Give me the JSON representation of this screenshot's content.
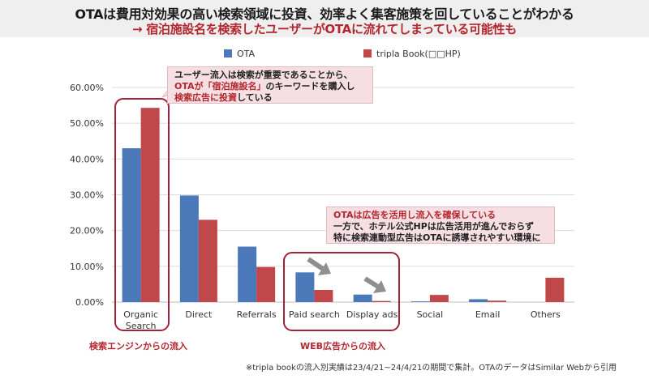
{
  "header": {
    "title": "OTAは費用対効果の高い検索領域に投資、効率よく集客施策を回していることがわかる",
    "subtitle": "→ 宿泊施設名を検索したユーザーがOTAに流れてしまっている可能性も"
  },
  "callouts": {
    "top": {
      "line1": "ユーザー流入は検索が重要であることから、",
      "line2_pre": "OTAが「宿泊施設名」",
      "line2_post": "のキーワードを購入し",
      "line3_pre": "検索広告に投資",
      "line3_post": "している"
    },
    "ads": {
      "line1": "OTAは広告を活用し流入を確保している",
      "line2": "一方で、ホテル公式HPは広告活用が進んでおらず",
      "line3": "特に検索連動型広告はOTAに誘導されやすい環境に"
    }
  },
  "group_labels": {
    "search": "検索エンジンからの流入",
    "web_ads": "WEB広告からの流入"
  },
  "footnote": "※tripla bookの流入別実績は23/4/21~24/4/21の期間で集計。OTAのデータはSimilar Webから引用",
  "colors": {
    "ota": "#4a78b8",
    "tripla": "#c0474a",
    "accent": "#b3262d"
  },
  "chart_data": {
    "type": "bar",
    "categories": [
      "Organic Search",
      "Direct",
      "Referrals",
      "Paid search",
      "Display ads",
      "Social",
      "Email",
      "Others"
    ],
    "series": [
      {
        "name": "OTA",
        "values": [
          43.0,
          29.8,
          15.5,
          8.3,
          2.1,
          0.2,
          0.8,
          0.0
        ]
      },
      {
        "name": "tripla Book(□□HP)",
        "values": [
          54.3,
          23.0,
          9.8,
          3.4,
          0.3,
          2.0,
          0.4,
          6.8
        ]
      }
    ],
    "y_ticks": [
      "0.00%",
      "10.00%",
      "20.00%",
      "30.00%",
      "40.00%",
      "50.00%",
      "60.00%"
    ],
    "ylim": [
      0,
      60
    ],
    "grid": true,
    "legend": "top"
  }
}
